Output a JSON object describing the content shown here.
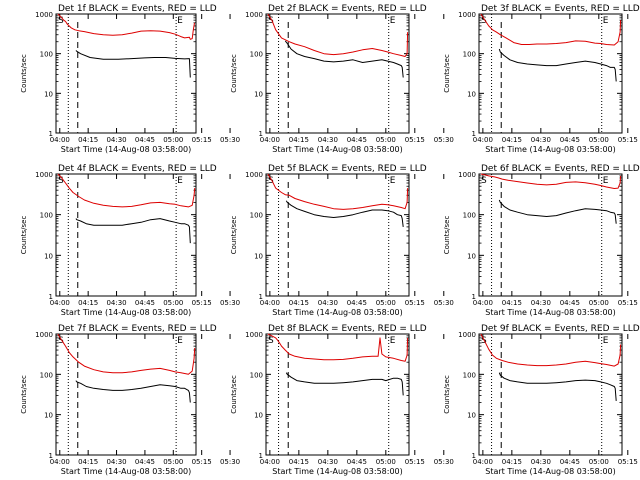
{
  "chart_data": [
    {
      "type": "line",
      "title": "Det 1f BLACK = Events, RED = LLD",
      "xlabel": "Start Time (14-Aug-08 03:58:00)",
      "ylabel": "Counts/sec",
      "x_ticks": [
        "04:00",
        "04:15",
        "04:30",
        "04:45",
        "05:00",
        "05:15",
        "05:30"
      ],
      "y_ticks": [
        "1",
        "10",
        "100",
        "1000"
      ],
      "ylim": [
        1,
        1000
      ],
      "yscale": "log",
      "markers": [
        "S",
        "E"
      ],
      "series": [
        {
          "name": "Events",
          "color": "#000000",
          "x": [
            10.5,
            11,
            13,
            18,
            25,
            33,
            40,
            47,
            52,
            58,
            63,
            68,
            70.5,
            71
          ],
          "values": [
            120,
            115,
            100,
            80,
            72,
            72,
            75,
            78,
            80,
            80,
            76,
            74,
            75,
            25
          ]
        },
        {
          "name": "LLD",
          "color": "#dd0000",
          "x": [
            1,
            2,
            3,
            4,
            5,
            6,
            8,
            10,
            12,
            15,
            20,
            25,
            30,
            35,
            40,
            45,
            50,
            55,
            60,
            63,
            66,
            68,
            70.5,
            71,
            72,
            72.5,
            73.2
          ],
          "values": [
            1000,
            900,
            800,
            700,
            650,
            550,
            450,
            400,
            380,
            360,
            320,
            300,
            290,
            300,
            330,
            370,
            380,
            370,
            340,
            310,
            270,
            250,
            260,
            230,
            240,
            380,
            600
          ]
        }
      ]
    },
    {
      "type": "line",
      "title": "Det 2f BLACK = Events, RED = LLD",
      "xlabel": "Start Time (14-Aug-08 03:58:00)",
      "ylabel": "Counts/sec",
      "x_ticks": [
        "04:00",
        "04:15",
        "04:30",
        "04:45",
        "05:00",
        "05:15",
        "05:30"
      ],
      "y_ticks": [
        "1",
        "10",
        "100",
        "1000"
      ],
      "ylim": [
        1,
        1000
      ],
      "yscale": "log",
      "markers": [
        "S",
        "E"
      ],
      "series": [
        {
          "name": "Events",
          "color": "#000000",
          "x": [
            10,
            11,
            13,
            16,
            20,
            25,
            30,
            35,
            40,
            45,
            50,
            55,
            60,
            63,
            66,
            68,
            70,
            70.5,
            71
          ],
          "values": [
            210,
            180,
            130,
            100,
            85,
            75,
            65,
            62,
            65,
            70,
            60,
            65,
            70,
            65,
            60,
            55,
            50,
            45,
            25
          ]
        },
        {
          "name": "LLD",
          "color": "#dd0000",
          "x": [
            1,
            3,
            5,
            8,
            12,
            15,
            20,
            25,
            30,
            35,
            40,
            45,
            50,
            55,
            60,
            63,
            66,
            70,
            72,
            73,
            73.3
          ],
          "values": [
            1000,
            700,
            400,
            250,
            200,
            175,
            150,
            120,
            100,
            95,
            100,
            110,
            125,
            135,
            120,
            110,
            100,
            90,
            85,
            100,
            350
          ]
        }
      ]
    },
    {
      "type": "line",
      "title": "Det 3f BLACK = Events, RED = LLD",
      "xlabel": "Start Time (14-Aug-08 03:58:00)",
      "ylabel": "Counts/sec",
      "x_ticks": [
        "04:00",
        "04:15",
        "04:30",
        "04:45",
        "05:00",
        "05:15",
        "05:30"
      ],
      "y_ticks": [
        "1",
        "10",
        "100",
        "1000"
      ],
      "ylim": [
        1,
        1000
      ],
      "yscale": "log",
      "markers": [
        "S",
        "E"
      ],
      "series": [
        {
          "name": "Events",
          "color": "#000000",
          "x": [
            10.5,
            11,
            13,
            16,
            20,
            25,
            30,
            35,
            40,
            45,
            50,
            55,
            60,
            63,
            66,
            68,
            70,
            70.5,
            71
          ],
          "values": [
            130,
            110,
            90,
            70,
            60,
            55,
            52,
            50,
            50,
            55,
            60,
            65,
            60,
            55,
            50,
            45,
            45,
            40,
            20
          ]
        },
        {
          "name": "LLD",
          "color": "#dd0000",
          "x": [
            1,
            3,
            5,
            7,
            9,
            11,
            14,
            18,
            22,
            26,
            30,
            35,
            40,
            45,
            50,
            55,
            60,
            63,
            66,
            70,
            72,
            73,
            73.3
          ],
          "values": [
            1000,
            700,
            500,
            400,
            350,
            300,
            250,
            190,
            170,
            170,
            175,
            175,
            180,
            190,
            210,
            205,
            185,
            180,
            170,
            165,
            200,
            350,
            700
          ]
        }
      ]
    },
    {
      "type": "line",
      "title": "Det 4f BLACK = Events, RED = LLD",
      "xlabel": "Start Time (14-Aug-08 03:58:00)",
      "ylabel": "Counts/sec",
      "x_ticks": [
        "04:00",
        "04:15",
        "04:30",
        "04:45",
        "05:00",
        "05:15",
        "05:30"
      ],
      "y_ticks": [
        "1",
        "10",
        "100",
        "1000"
      ],
      "ylim": [
        1,
        1000
      ],
      "yscale": "log",
      "markers": [
        "S",
        "E"
      ],
      "series": [
        {
          "name": "Events",
          "color": "#000000",
          "x": [
            10.5,
            11,
            13,
            16,
            20,
            25,
            30,
            35,
            40,
            45,
            50,
            55,
            60,
            63,
            66,
            68,
            70,
            70.5,
            71
          ],
          "values": [
            80,
            75,
            70,
            60,
            55,
            55,
            55,
            55,
            60,
            65,
            75,
            80,
            70,
            65,
            60,
            60,
            55,
            50,
            20
          ]
        },
        {
          "name": "LLD",
          "color": "#dd0000",
          "x": [
            1,
            3,
            5,
            7,
            9,
            12,
            15,
            20,
            25,
            30,
            35,
            40,
            45,
            50,
            55,
            60,
            63,
            66,
            70,
            72,
            73,
            73.3
          ],
          "values": [
            1000,
            800,
            600,
            450,
            350,
            280,
            230,
            190,
            170,
            160,
            155,
            160,
            175,
            195,
            200,
            185,
            180,
            165,
            155,
            170,
            300,
            450
          ]
        }
      ]
    },
    {
      "type": "line",
      "title": "Det 5f BLACK = Events, RED = LLD",
      "xlabel": "Start Time (14-Aug-08 03:58:00)",
      "ylabel": "Counts/sec",
      "x_ticks": [
        "04:00",
        "04:15",
        "04:30",
        "04:45",
        "05:00",
        "05:15",
        "05:30"
      ],
      "y_ticks": [
        "1",
        "10",
        "100",
        "1000"
      ],
      "ylim": [
        1,
        1000
      ],
      "yscale": "log",
      "markers": [
        "S",
        "E"
      ],
      "series": [
        {
          "name": "Events",
          "color": "#000000",
          "x": [
            10.5,
            11,
            13,
            16,
            20,
            25,
            30,
            35,
            40,
            45,
            50,
            55,
            60,
            63,
            66,
            68,
            70,
            70.5,
            71
          ],
          "values": [
            220,
            200,
            170,
            140,
            120,
            100,
            90,
            85,
            90,
            100,
            115,
            130,
            130,
            125,
            115,
            100,
            95,
            80,
            50
          ]
        },
        {
          "name": "LLD",
          "color": "#dd0000",
          "x": [
            1,
            3,
            5,
            8,
            10,
            12,
            15,
            20,
            25,
            30,
            35,
            40,
            45,
            50,
            55,
            60,
            63,
            66,
            70,
            72,
            73,
            73.3
          ],
          "values": [
            1000,
            700,
            450,
            350,
            310,
            300,
            250,
            210,
            180,
            160,
            140,
            135,
            140,
            150,
            165,
            180,
            175,
            165,
            150,
            140,
            200,
            450
          ]
        }
      ]
    },
    {
      "type": "line",
      "title": "Det 6f BLACK = Events, RED = LLD",
      "xlabel": "Start Time (14-Aug-08 03:58:00)",
      "ylabel": "Counts/sec",
      "x_ticks": [
        "04:00",
        "04:15",
        "04:30",
        "04:45",
        "05:00",
        "05:15",
        "05:30"
      ],
      "y_ticks": [
        "1",
        "10",
        "100",
        "1000"
      ],
      "ylim": [
        1,
        1000
      ],
      "yscale": "log",
      "markers": [
        "S",
        "E"
      ],
      "series": [
        {
          "name": "Events",
          "color": "#000000",
          "x": [
            10.5,
            11,
            13,
            16,
            20,
            25,
            30,
            35,
            40,
            45,
            50,
            55,
            60,
            63,
            66,
            68,
            70,
            70.5,
            71
          ],
          "values": [
            230,
            200,
            160,
            130,
            115,
            100,
            95,
            90,
            95,
            110,
            125,
            140,
            135,
            130,
            125,
            115,
            110,
            100,
            60
          ]
        },
        {
          "name": "LLD",
          "color": "#dd0000",
          "x": [
            1,
            3,
            5,
            8,
            10,
            12,
            15,
            20,
            25,
            30,
            35,
            40,
            45,
            50,
            55,
            60,
            63,
            66,
            70,
            72,
            73,
            73.3
          ],
          "values": [
            1000,
            950,
            900,
            850,
            800,
            750,
            700,
            650,
            600,
            560,
            540,
            560,
            620,
            640,
            610,
            560,
            520,
            480,
            440,
            450,
            600,
            900
          ]
        }
      ]
    },
    {
      "type": "line",
      "title": "Det 7f BLACK = Events, RED = LLD",
      "xlabel": "Start Time (14-Aug-08 03:58:00)",
      "ylabel": "Counts/sec",
      "x_ticks": [
        "04:00",
        "04:15",
        "04:30",
        "04:45",
        "05:00",
        "05:15",
        "05:30"
      ],
      "y_ticks": [
        "1",
        "10",
        "100",
        "1000"
      ],
      "ylim": [
        1,
        1000
      ],
      "yscale": "log",
      "markers": [
        "S",
        "E"
      ],
      "series": [
        {
          "name": "Events",
          "color": "#000000",
          "x": [
            10.5,
            11,
            13,
            16,
            20,
            25,
            30,
            35,
            40,
            45,
            50,
            55,
            60,
            63,
            66,
            68,
            70,
            70.5,
            71
          ],
          "values": [
            70,
            65,
            60,
            50,
            45,
            42,
            40,
            40,
            42,
            45,
            50,
            55,
            52,
            50,
            45,
            45,
            40,
            35,
            20
          ]
        },
        {
          "name": "LLD",
          "color": "#dd0000",
          "x": [
            1,
            3,
            5,
            7,
            9,
            12,
            15,
            20,
            25,
            30,
            35,
            40,
            45,
            50,
            55,
            60,
            63,
            66,
            70,
            72,
            73,
            73.3
          ],
          "values": [
            1000,
            700,
            500,
            350,
            270,
            200,
            160,
            130,
            115,
            110,
            110,
            115,
            125,
            135,
            140,
            125,
            115,
            110,
            100,
            120,
            250,
            450
          ]
        }
      ]
    },
    {
      "type": "line",
      "title": "Det 8f BLACK = Events, RED = LLD",
      "xlabel": "Start Time (14-Aug-08 03:58:00)",
      "ylabel": "Counts/sec",
      "x_ticks": [
        "04:00",
        "04:15",
        "04:30",
        "04:45",
        "05:00",
        "05:15",
        "05:30"
      ],
      "y_ticks": [
        "1",
        "10",
        "100",
        "1000"
      ],
      "ylim": [
        1,
        1000
      ],
      "yscale": "log",
      "markers": [
        "S",
        "E"
      ],
      "series": [
        {
          "name": "Events",
          "color": "#000000",
          "x": [
            10.5,
            11,
            13,
            16,
            20,
            25,
            30,
            35,
            40,
            45,
            50,
            55,
            60,
            62,
            64,
            66,
            68,
            70,
            70.5,
            71
          ],
          "values": [
            110,
            100,
            85,
            70,
            65,
            60,
            60,
            60,
            62,
            65,
            70,
            75,
            75,
            70,
            75,
            80,
            80,
            75,
            65,
            30
          ]
        },
        {
          "name": "LLD",
          "color": "#dd0000",
          "x": [
            1,
            3,
            5,
            6,
            7,
            8,
            10,
            12,
            15,
            20,
            25,
            30,
            35,
            40,
            45,
            50,
            55,
            58,
            59,
            60,
            62,
            66,
            70,
            72,
            73,
            73.3
          ],
          "values": [
            1000,
            900,
            800,
            700,
            600,
            500,
            400,
            320,
            280,
            250,
            240,
            230,
            230,
            235,
            250,
            270,
            280,
            280,
            800,
            320,
            270,
            250,
            220,
            210,
            300,
            800
          ]
        }
      ]
    },
    {
      "type": "line",
      "title": "Det 9f BLACK = Events, RED = LLD",
      "xlabel": "Start Time (14-Aug-08 03:58:00)",
      "ylabel": "Counts/sec",
      "x_ticks": [
        "04:00",
        "04:15",
        "04:30",
        "04:45",
        "05:00",
        "05:15",
        "05:30"
      ],
      "y_ticks": [
        "1",
        "10",
        "100",
        "1000"
      ],
      "ylim": [
        1,
        1000
      ],
      "yscale": "log",
      "markers": [
        "S",
        "E"
      ],
      "series": [
        {
          "name": "Events",
          "color": "#000000",
          "x": [
            10.5,
            11,
            13,
            16,
            20,
            25,
            30,
            35,
            40,
            45,
            50,
            55,
            60,
            63,
            66,
            68,
            70,
            70.5,
            71
          ],
          "values": [
            110,
            95,
            80,
            70,
            65,
            60,
            60,
            60,
            62,
            65,
            70,
            72,
            70,
            65,
            60,
            55,
            50,
            45,
            22
          ]
        },
        {
          "name": "LLD",
          "color": "#dd0000",
          "x": [
            1,
            3,
            5,
            7,
            9,
            12,
            15,
            20,
            25,
            30,
            35,
            40,
            45,
            50,
            55,
            60,
            63,
            66,
            70,
            72,
            73,
            73.3
          ],
          "values": [
            1000,
            650,
            420,
            300,
            250,
            220,
            200,
            180,
            170,
            165,
            165,
            170,
            180,
            200,
            210,
            195,
            185,
            175,
            160,
            180,
            300,
            550
          ]
        }
      ]
    }
  ],
  "x_domain": [
    0,
    74
  ],
  "vlines": {
    "dotted": [
      6.5,
      63.5
    ],
    "dashed": [
      11.5
    ]
  },
  "colors": {
    "events": "#000000",
    "lld": "#dd0000"
  }
}
